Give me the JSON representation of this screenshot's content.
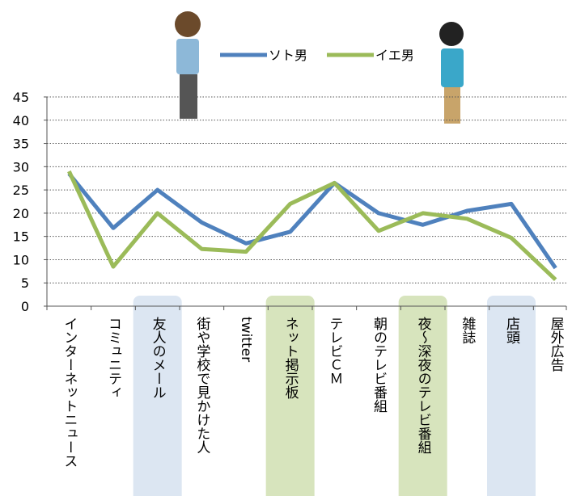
{
  "chart_data": {
    "type": "line",
    "categories": [
      "インターネットニュース",
      "コミュニティ",
      "友人のメール",
      "街や学校で見かけた人",
      "twitter",
      "ネット掲示板",
      "テレビＣＭ",
      "朝のテレビ番組",
      "夜～深夜のテレビ番組",
      "雑誌",
      "店頭",
      "屋外広告"
    ],
    "category_highlights": [
      null,
      null,
      "#dce6f2",
      null,
      null,
      "#d7e4bd",
      null,
      null,
      "#d7e4bd",
      null,
      "#dce6f2",
      null
    ],
    "series": [
      {
        "name": "ソト男",
        "color": "#4f81bd",
        "values": [
          28.5,
          16.8,
          25,
          18,
          13.5,
          16,
          26.5,
          20,
          17.5,
          20.5,
          22,
          8.2
        ]
      },
      {
        "name": "イエ男",
        "color": "#9bbb59",
        "values": [
          29,
          8.5,
          20,
          12.3,
          11.7,
          22,
          26.5,
          16.2,
          20,
          18.8,
          14.7,
          5.7
        ]
      }
    ],
    "ylim": [
      0,
      45
    ],
    "yticks": [
      0,
      5,
      10,
      15,
      20,
      25,
      30,
      35,
      40,
      45
    ],
    "grid": true,
    "legend": "top"
  }
}
